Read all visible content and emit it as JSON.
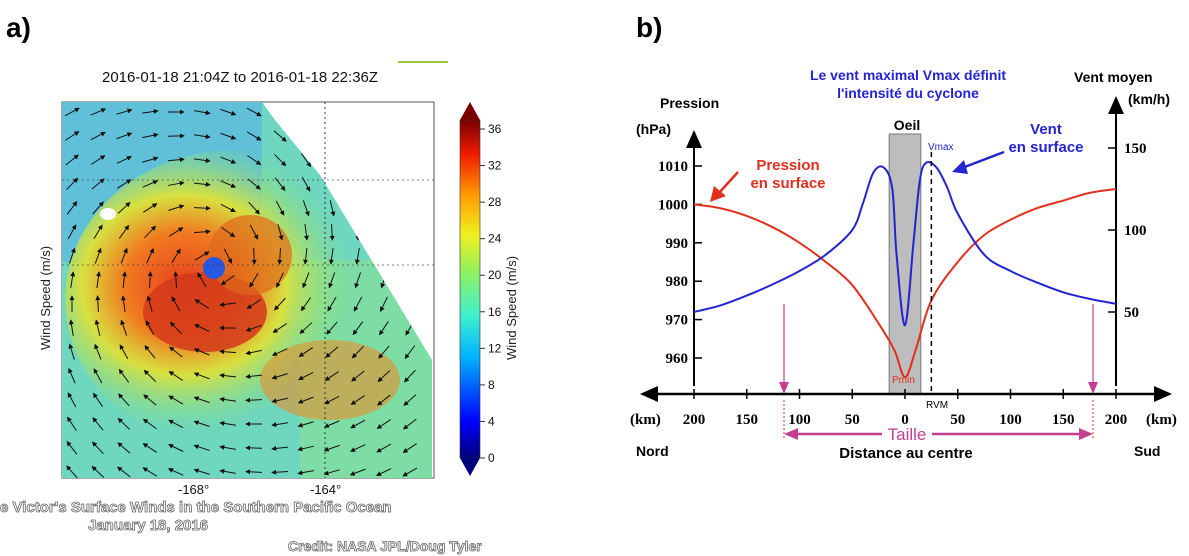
{
  "panel_a": {
    "label": "a)",
    "time_range": "2016-01-18 21:04Z to 2016-01-18 22:36Z",
    "ylabel": "Wind Speed (m/s)",
    "colorbar_label": "Wind Speed (m/s)",
    "colorbar_ticks": [
      "36",
      "32",
      "28",
      "24",
      "20",
      "16",
      "12",
      "8",
      "4",
      "0"
    ],
    "x_ticks": [
      "-168°",
      "-164°"
    ],
    "caption_line1": "e Victor's Surface Winds in the Southern Pacific Ocean",
    "caption_line2": "January 18, 2016",
    "credit": "Credit: NASA JPL/Doug Tyler"
  },
  "panel_b": {
    "label": "b)",
    "annotation_top1": "Le vent maximal Vmax définit",
    "annotation_top2": "l'intensité du cyclone",
    "left_axis_title": "Pression",
    "left_axis_unit": "(hPa)",
    "right_axis_title": "Vent moyen",
    "right_axis_unit": "(km/h)",
    "eye_label": "Oeil",
    "vmax_label": "Vmax",
    "wind_label1": "Vent",
    "wind_label2": "en surface",
    "pressure_label1": "Pression",
    "pressure_label2": "en surface",
    "pmin_label": "Pmin",
    "rvm_label": "RVM",
    "km_left": "(km)",
    "km_right": "(km)",
    "taille_label": "Taille",
    "nord": "Nord",
    "sud": "Sud",
    "xlabel": "Distance au centre",
    "left_ticks": [
      "1010",
      "1000",
      "990",
      "980",
      "970",
      "960"
    ],
    "right_ticks": [
      "150",
      "100",
      "50"
    ],
    "x_ticks": [
      "200",
      "150",
      "100",
      "50",
      "0",
      "50",
      "100",
      "150",
      "200"
    ]
  },
  "colors": {
    "pressure": "#e0301e",
    "wind": "#2424d0",
    "taille": "#c2408e",
    "eye": "#bdbdbd"
  },
  "chart_data": {
    "type": "line",
    "xlabel": "Distance au centre",
    "x_unit": "km",
    "xlim": [
      -200,
      200
    ],
    "ylim_left": [
      955,
      1015
    ],
    "ylim_right": [
      35,
      165
    ],
    "series": [
      {
        "name": "Pression en surface",
        "axis": "left",
        "x": [
          -200,
          -175,
          -150,
          -125,
          -100,
          -75,
          -50,
          -25,
          -10,
          0,
          10,
          25,
          50,
          75,
          100,
          125,
          150,
          175,
          200
        ],
        "y": [
          1000,
          999,
          997,
          994,
          990,
          985,
          979,
          969,
          962,
          955,
          962,
          975,
          985,
          992,
          996,
          999,
          1001,
          1003,
          1004
        ]
      },
      {
        "name": "Vent en surface",
        "axis": "right",
        "x": [
          -200,
          -175,
          -150,
          -125,
          -100,
          -75,
          -50,
          -40,
          -30,
          -20,
          -12,
          -8,
          0,
          8,
          14,
          20,
          30,
          40,
          50,
          75,
          100,
          125,
          150,
          175,
          200
        ],
        "y": [
          50,
          54,
          60,
          67,
          75,
          85,
          100,
          116,
          135,
          138,
          125,
          85,
          42,
          92,
          130,
          141,
          138,
          126,
          110,
          85,
          75,
          68,
          62,
          58,
          55
        ]
      }
    ]
  }
}
